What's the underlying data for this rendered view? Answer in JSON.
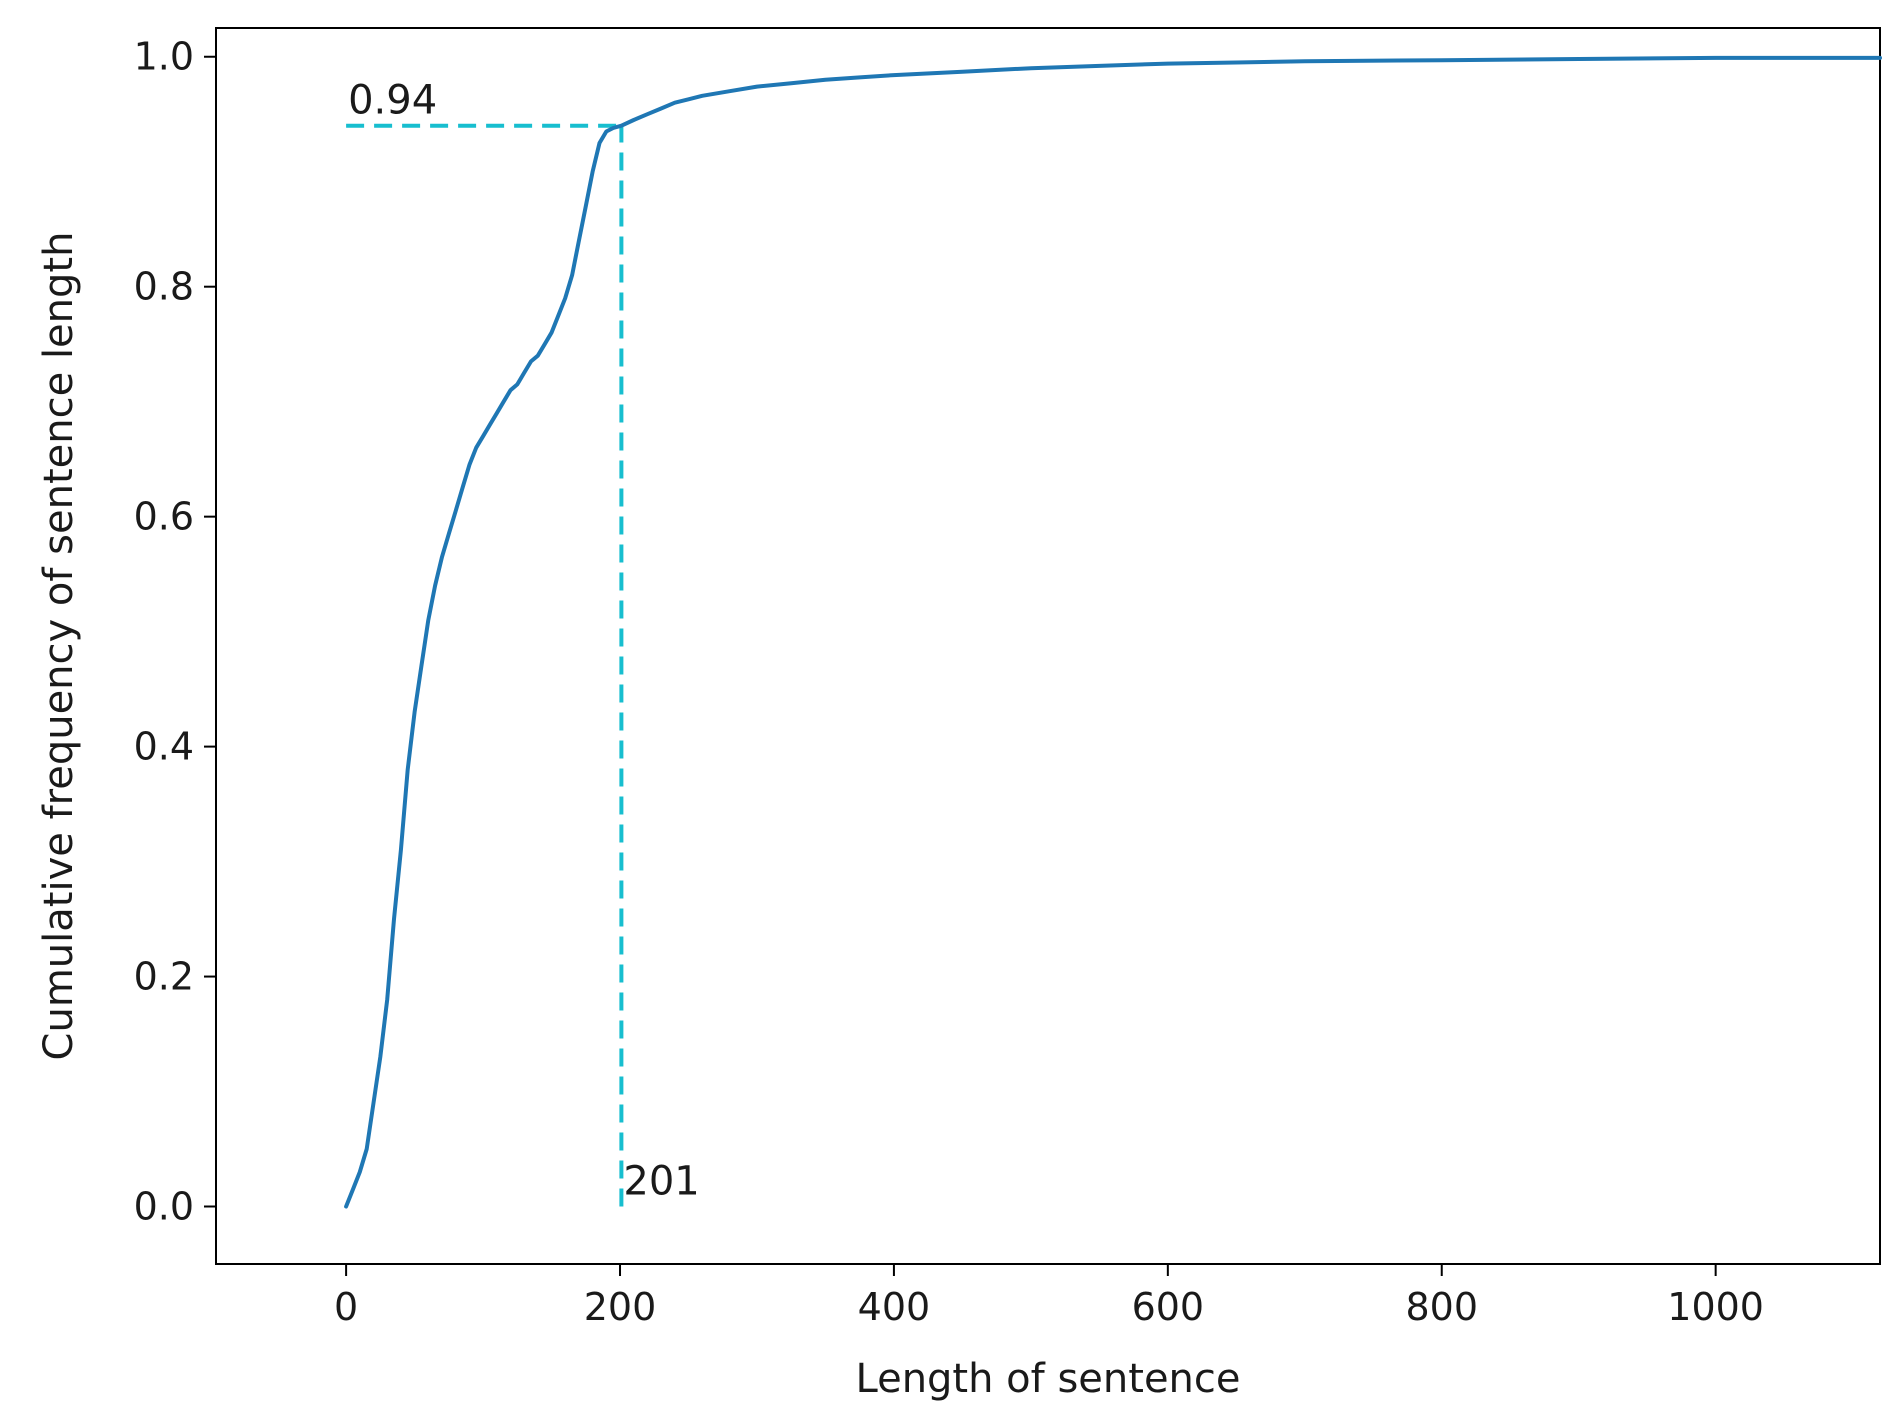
{
  "chart_data": {
    "type": "line",
    "title": "",
    "xlabel": "Length of sentence",
    "ylabel": "Cumulative frequency of sentence length",
    "xlim": [
      -95,
      1120
    ],
    "ylim": [
      -0.05,
      1.025
    ],
    "grid": false,
    "legend": "none",
    "xticks": [
      0,
      200,
      400,
      600,
      800,
      1000
    ],
    "xtick_labels": [
      "0",
      "200",
      "400",
      "600",
      "800",
      "1000"
    ],
    "yticks": [
      0.0,
      0.2,
      0.4,
      0.6,
      0.8,
      1.0
    ],
    "ytick_labels": [
      "0.0",
      "0.2",
      "0.4",
      "0.6",
      "0.8",
      "1.0"
    ],
    "line_color": "#1f77b4",
    "guide_color": "#17becf",
    "series": [
      {
        "x": [
          0,
          5,
          10,
          15,
          20,
          25,
          30,
          35,
          40,
          45,
          50,
          55,
          60,
          65,
          70,
          75,
          80,
          85,
          90,
          95,
          100,
          105,
          110,
          115,
          120,
          125,
          130,
          135,
          140,
          145,
          150,
          155,
          160,
          165,
          170,
          175,
          180,
          185,
          190,
          195,
          201,
          210,
          220,
          230,
          240,
          250,
          260,
          280,
          300,
          325,
          350,
          375,
          400,
          450,
          500,
          550,
          600,
          650,
          700,
          800,
          900,
          1000,
          1120
        ],
        "y": [
          0.0,
          0.015,
          0.03,
          0.05,
          0.09,
          0.13,
          0.18,
          0.25,
          0.31,
          0.38,
          0.43,
          0.47,
          0.51,
          0.54,
          0.565,
          0.585,
          0.605,
          0.625,
          0.645,
          0.66,
          0.67,
          0.68,
          0.69,
          0.7,
          0.71,
          0.715,
          0.725,
          0.735,
          0.74,
          0.75,
          0.76,
          0.775,
          0.79,
          0.81,
          0.84,
          0.87,
          0.9,
          0.925,
          0.935,
          0.938,
          0.94,
          0.945,
          0.95,
          0.955,
          0.96,
          0.963,
          0.966,
          0.97,
          0.974,
          0.977,
          0.98,
          0.982,
          0.984,
          0.987,
          0.99,
          0.992,
          0.994,
          0.995,
          0.996,
          0.997,
          0.998,
          0.999,
          0.999
        ]
      }
    ],
    "annotations": [
      {
        "label": "0.94",
        "x": 0,
        "y": 0.94
      },
      {
        "label": "201",
        "x": 201,
        "y": 0.0
      }
    ],
    "guides": {
      "horizontal": {
        "y": 0.94,
        "x_from": 0,
        "x_to": 201
      },
      "vertical": {
        "x": 201,
        "y_from": 0.0,
        "y_to": 0.94
      }
    }
  }
}
